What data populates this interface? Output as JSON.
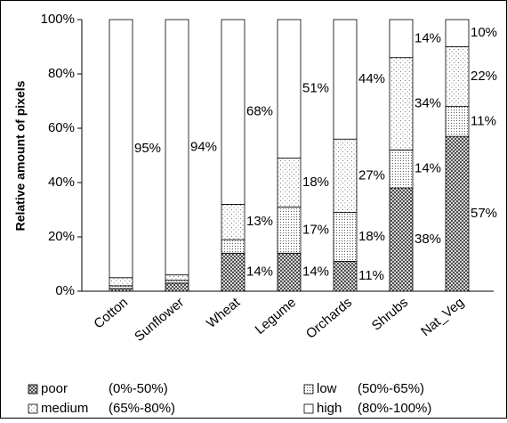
{
  "chart_data": {
    "type": "stacked_bar",
    "y_label": "Relative amount of pixels",
    "categories": [
      "Cotton",
      "Sunflower",
      "Wheat",
      "Legume",
      "Orchards",
      "Shrubs",
      "Nat_Veg"
    ],
    "series": [
      {
        "name": "poor",
        "description": "(0%-50%)",
        "color": "#555555",
        "pattern": "crosshatch",
        "values": [
          1,
          3,
          14,
          14,
          11,
          38,
          57
        ],
        "value_labels": [
          null,
          null,
          "14%",
          "14%",
          "11%",
          "38%",
          "57%"
        ]
      },
      {
        "name": "low",
        "description": "(50%-65%)",
        "color": "#777777",
        "pattern": "dots",
        "values": [
          1,
          1,
          5,
          17,
          18,
          14,
          11
        ],
        "value_labels": [
          null,
          null,
          null,
          "17%",
          "18%",
          "14%",
          "11%"
        ]
      },
      {
        "name": "medium",
        "description": "(65%-80%)",
        "color": "#aaaaaa",
        "pattern": "sparse-dots",
        "values": [
          3,
          2,
          13,
          18,
          27,
          34,
          22
        ],
        "value_labels": [
          null,
          null,
          "13%",
          "18%",
          "27%",
          "34%",
          "22%"
        ]
      },
      {
        "name": "high",
        "description": "(80%-100%)",
        "color": "#ffffff",
        "pattern": "none",
        "values": [
          95,
          94,
          68,
          51,
          44,
          14,
          10
        ],
        "value_labels": [
          "95%",
          "94%",
          "68%",
          "51%",
          "44%",
          "14%",
          "10%"
        ]
      }
    ],
    "ylim": [
      0,
      100
    ],
    "yticks": [
      {
        "value": 0,
        "label": "0%"
      },
      {
        "value": 20,
        "label": "20%"
      },
      {
        "value": 40,
        "label": "40%"
      },
      {
        "value": 60,
        "label": "60%"
      },
      {
        "value": 80,
        "label": "80%"
      },
      {
        "value": 100,
        "label": "100%"
      }
    ],
    "grid": false
  }
}
